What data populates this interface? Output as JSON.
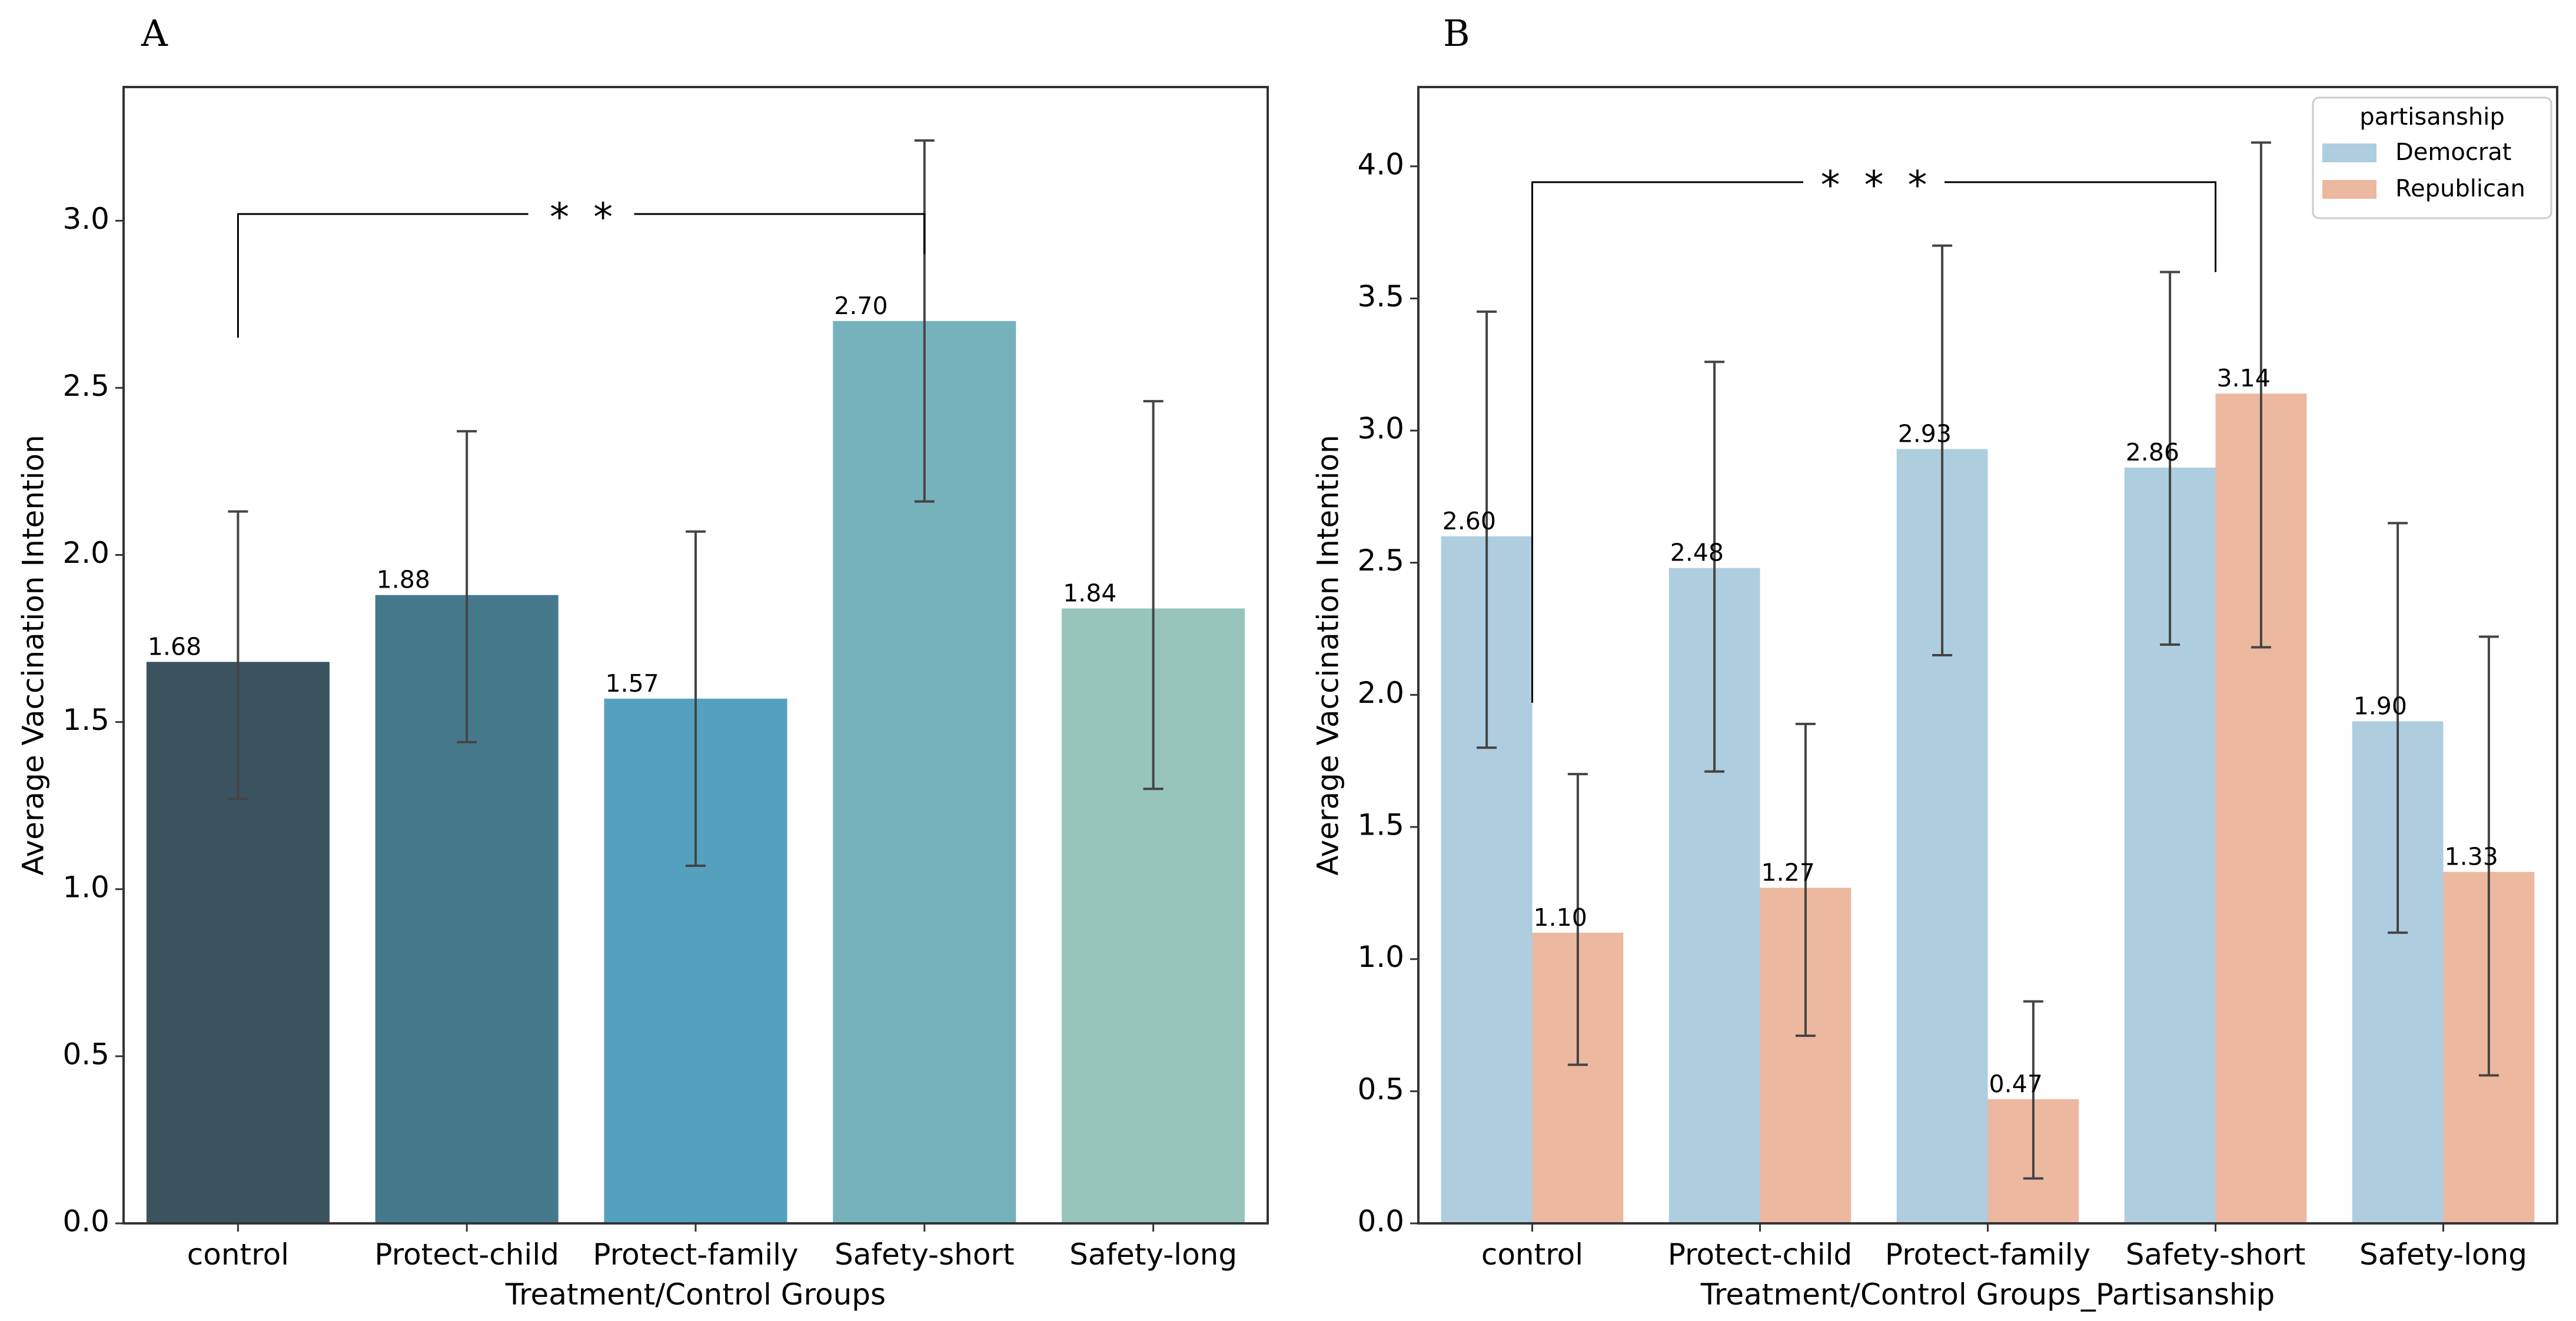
{
  "colors": {
    "panel_a": [
      "#3b535e",
      "#46798c",
      "#53a0bf",
      "#76b2bc",
      "#98c5bb"
    ],
    "democrat": "#aecddf",
    "republican": "#ecb89f",
    "errorbar": "#444444",
    "axis": "#333333"
  },
  "chart_data": [
    {
      "id": "A",
      "panel_label": "A",
      "type": "bar",
      "categories": [
        "control",
        "Protect-child",
        "Protect-family",
        "Safety-short",
        "Safety-long"
      ],
      "values": [
        1.68,
        1.88,
        1.57,
        2.7,
        1.84
      ],
      "value_labels": [
        "1.68",
        "1.88",
        "1.57",
        "2.70",
        "1.84"
      ],
      "err_low": [
        1.27,
        1.44,
        1.07,
        2.16,
        1.3
      ],
      "err_high": [
        2.13,
        2.37,
        2.07,
        3.24,
        2.46
      ],
      "xlabel": "Treatment/Control Groups",
      "ylabel": "Average Vaccination Intention",
      "ylim": [
        0,
        3.4
      ],
      "yticks": [
        0.0,
        0.5,
        1.0,
        1.5,
        2.0,
        2.5,
        3.0
      ],
      "ytick_labels": [
        "0.0",
        "0.5",
        "1.0",
        "1.5",
        "2.0",
        "2.5",
        "3.0"
      ],
      "significance": {
        "label": "* *",
        "from": 0,
        "to": 3,
        "bracket_y": 3.02,
        "left_bottom": 2.65,
        "right_bottom": 2.9
      }
    },
    {
      "id": "B",
      "panel_label": "B",
      "type": "bar",
      "categories": [
        "control",
        "Protect-child",
        "Protect-family",
        "Safety-short",
        "Safety-long"
      ],
      "series": [
        {
          "name": "Democrat",
          "values": [
            2.6,
            2.48,
            2.93,
            2.86,
            1.9
          ],
          "value_labels": [
            "2.60",
            "2.48",
            "2.93",
            "2.86",
            "1.90"
          ],
          "err_low": [
            1.8,
            1.71,
            2.15,
            2.19,
            1.1
          ],
          "err_high": [
            3.45,
            3.26,
            3.7,
            3.6,
            2.65
          ]
        },
        {
          "name": "Republican",
          "values": [
            1.1,
            1.27,
            0.47,
            3.14,
            1.33
          ],
          "value_labels": [
            "1.10",
            "1.27",
            "0.47",
            "3.14",
            "1.33"
          ],
          "err_low": [
            0.6,
            0.71,
            0.17,
            2.18,
            0.56
          ],
          "err_high": [
            1.7,
            1.89,
            0.84,
            4.09,
            2.22
          ]
        }
      ],
      "xlabel": "Treatment/Control Groups_Partisanship",
      "ylabel": "Average Vaccination Intention",
      "ylim": [
        0,
        4.3
      ],
      "yticks": [
        0.0,
        0.5,
        1.0,
        1.5,
        2.0,
        2.5,
        3.0,
        3.5,
        4.0
      ],
      "ytick_labels": [
        "0.0",
        "0.5",
        "1.0",
        "1.5",
        "2.0",
        "2.5",
        "3.0",
        "3.5",
        "4.0"
      ],
      "legend": {
        "title": "partisanship",
        "entries": [
          "Democrat",
          "Republican"
        ],
        "position": "top-right"
      },
      "significance": {
        "label": "* * *",
        "from": 0,
        "to": 3,
        "bracket_y": 3.94,
        "left_bottom": 1.97,
        "right_bottom": 3.6
      }
    }
  ]
}
